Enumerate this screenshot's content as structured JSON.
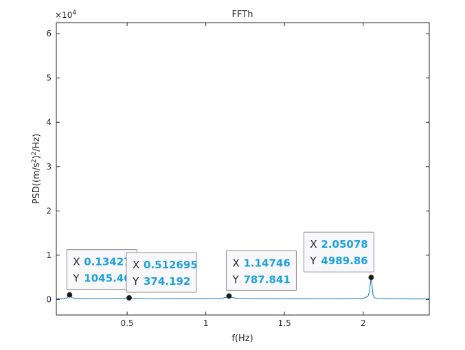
{
  "chart_data": {
    "type": "line",
    "title": "FFTh",
    "xlabel": "f(Hz)",
    "ylabel": "PSD((m/s²)²/Hz)",
    "ylabel_parts": {
      "pre": "PSD((m/s",
      "sup1": "2",
      "mid": ")",
      "sup2": "2",
      "post": "/Hz)"
    },
    "y_exponent": {
      "base": "×10",
      "exp": "4"
    },
    "xlim": [
      0.05,
      2.42
    ],
    "ylim": [
      -3500,
      62500
    ],
    "xticks": [
      0.5,
      1,
      1.5,
      2
    ],
    "xtick_labels": [
      "0.5",
      "1",
      "1.5",
      "2"
    ],
    "yticks": [
      0,
      10000,
      20000,
      30000,
      40000,
      50000,
      60000
    ],
    "ytick_labels": [
      "0",
      "1",
      "2",
      "3",
      "4",
      "5",
      "6"
    ],
    "grid": false,
    "series": [
      {
        "x": [
          0.05,
          0.1,
          0.12,
          0.13,
          0.1343,
          0.14,
          0.15,
          0.17,
          0.2,
          0.3,
          0.4,
          0.48,
          0.5,
          0.5127,
          0.53,
          0.6,
          0.7,
          0.8,
          0.9,
          1.0,
          1.1,
          1.13,
          1.1475,
          1.16,
          1.2,
          1.3,
          1.4,
          1.5,
          1.6,
          1.7,
          1.8,
          1.9,
          2.0,
          2.03,
          2.04,
          2.045,
          2.0508,
          2.056,
          2.062,
          2.07,
          2.1,
          2.2,
          2.3,
          2.42
        ],
        "y": [
          150,
          200,
          400,
          800,
          1045.46,
          800,
          400,
          250,
          200,
          180,
          200,
          250,
          300,
          374.192,
          280,
          200,
          180,
          170,
          190,
          200,
          250,
          500,
          787.841,
          500,
          250,
          180,
          160,
          150,
          160,
          150,
          150,
          170,
          250,
          700,
          1800,
          3500,
          4989.86,
          3200,
          1200,
          400,
          200,
          150,
          130,
          120
        ],
        "color": "#0072bd"
      }
    ],
    "datatips": [
      {
        "x_key": "X",
        "y_key": "Y",
        "x": 0.13427,
        "y": 1045.46,
        "x_label": "0.134277",
        "y_label": "1045.46"
      },
      {
        "x_key": "X",
        "y_key": "Y",
        "x": 0.512695,
        "y": 374.192,
        "x_label": "0.512695",
        "y_label": "374.192"
      },
      {
        "x_key": "X",
        "y_key": "Y",
        "x": 1.14746,
        "y": 787.841,
        "x_label": "1.14746",
        "y_label": "787.841"
      },
      {
        "x_key": "X",
        "y_key": "Y",
        "x": 2.05078,
        "y": 4989.86,
        "x_label": "2.05078",
        "y_label": "4989.86"
      }
    ]
  }
}
